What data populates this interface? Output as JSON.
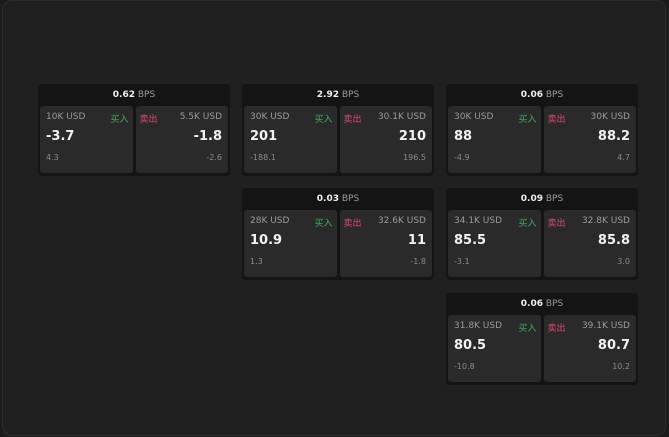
{
  "colors": {
    "buy": "#3fae5e",
    "sell": "#e0476f"
  },
  "widgets": [
    {
      "spread": "0.62",
      "unit": "BPS",
      "buy": {
        "qty": "10K USD",
        "label": "买入",
        "price": "-3.7",
        "change": "4.3"
      },
      "sell": {
        "qty": "5.5K USD",
        "label": "卖出",
        "price": "-1.8",
        "change": "-2.6"
      }
    },
    {
      "spread": "2.92",
      "unit": "BPS",
      "buy": {
        "qty": "30K USD",
        "label": "买入",
        "price": "201",
        "change": "-188.1"
      },
      "sell": {
        "qty": "30.1K USD",
        "label": "卖出",
        "price": "210",
        "change": "196.5"
      }
    },
    {
      "spread": "0.06",
      "unit": "BPS",
      "buy": {
        "qty": "30K USD",
        "label": "买入",
        "price": "88",
        "change": "-4.9"
      },
      "sell": {
        "qty": "30K USD",
        "label": "卖出",
        "price": "88.2",
        "change": "4.7"
      }
    },
    {
      "spread": "0.03",
      "unit": "BPS",
      "buy": {
        "qty": "28K USD",
        "label": "买入",
        "price": "10.9",
        "change": "1.3"
      },
      "sell": {
        "qty": "32.6K USD",
        "label": "卖出",
        "price": "11",
        "change": "-1.8"
      }
    },
    {
      "spread": "0.09",
      "unit": "BPS",
      "buy": {
        "qty": "34.1K USD",
        "label": "买入",
        "price": "85.5",
        "change": "-3.1"
      },
      "sell": {
        "qty": "32.8K USD",
        "label": "卖出",
        "price": "85.8",
        "change": "3.0"
      }
    },
    {
      "spread": "0.06",
      "unit": "BPS",
      "buy": {
        "qty": "31.8K USD",
        "label": "买入",
        "price": "80.5",
        "change": "-10.8"
      },
      "sell": {
        "qty": "39.1K USD",
        "label": "卖出",
        "price": "80.7",
        "change": "10.2"
      }
    }
  ]
}
